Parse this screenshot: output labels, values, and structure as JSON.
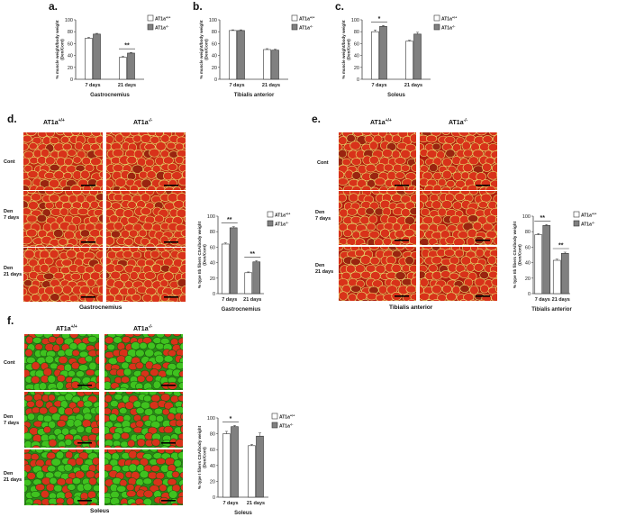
{
  "panels": {
    "a": {
      "letter": "a.",
      "tissue": "Gastrocnemius"
    },
    "b": {
      "letter": "b.",
      "tissue": "Tibialis anterior"
    },
    "c": {
      "letter": "c.",
      "tissue": "Soleus"
    },
    "d": {
      "letter": "d.",
      "tissue": "Gastrocnemius",
      "genotypes": [
        "AT1a",
        "AT1a"
      ],
      "genotype_sup": [
        "+/+",
        "-/-"
      ],
      "rows": [
        "Cont",
        "Den\n7 days",
        "Den\n21 days"
      ]
    },
    "e": {
      "letter": "e.",
      "tissue": "Tibialis anterior",
      "genotypes": [
        "AT1a",
        "AT1a"
      ],
      "genotype_sup": [
        "+/+",
        "-/-"
      ],
      "rows": [
        "Cont",
        "Den\n7 days",
        "Den\n21 days"
      ]
    },
    "f": {
      "letter": "f.",
      "tissue": "Soleus",
      "genotypes": [
        "AT1a",
        "AT1a"
      ],
      "genotype_sup": [
        "+/+",
        "-/-"
      ],
      "rows": [
        "Cont",
        "Den\n7 days",
        "Den\n21 days"
      ]
    }
  },
  "colors": {
    "wt": "#ffffff",
    "ko": "#808080",
    "red_fiber": "#d8321a",
    "green_fiber": "#3fc21f",
    "membrane": "#e8e070"
  },
  "chart_data": [
    {
      "id": "a",
      "type": "bar",
      "categories": [
        "7 days",
        "21 days"
      ],
      "series": [
        {
          "name": "AT1a+/+",
          "values": [
            69,
            37
          ],
          "errors": [
            1.5,
            1.5
          ]
        },
        {
          "name": "AT1a-/-",
          "values": [
            76,
            44
          ],
          "errors": [
            1.2,
            1.2
          ]
        }
      ],
      "xlabel": "Gastrocnemius",
      "ylabel": "% muscle weight/body weight\n(Den/Cont)",
      "ylim": [
        0,
        100
      ],
      "yticks": [
        0,
        20,
        40,
        60,
        80,
        100
      ],
      "annotations": [
        {
          "category": "21 days",
          "text": "**"
        }
      ],
      "legend": "top-right"
    },
    {
      "id": "b",
      "type": "bar",
      "categories": [
        "7 days",
        "21 days"
      ],
      "series": [
        {
          "name": "AT1a+/+",
          "values": [
            82,
            50
          ],
          "errors": [
            1.2,
            1.5
          ]
        },
        {
          "name": "AT1a-/-",
          "values": [
            82,
            49
          ],
          "errors": [
            1.2,
            1.5
          ]
        }
      ],
      "xlabel": "Tibialis anterior",
      "ylabel": "% muscle weight/body weight\n(Den/Cont)",
      "ylim": [
        0,
        100
      ],
      "yticks": [
        0,
        20,
        40,
        60,
        80,
        100
      ],
      "annotations": [],
      "legend": "top-right"
    },
    {
      "id": "c",
      "type": "bar",
      "categories": [
        "7 days",
        "21 days"
      ],
      "series": [
        {
          "name": "AT1a+/+",
          "values": [
            80,
            64
          ],
          "errors": [
            3,
            1.5
          ]
        },
        {
          "name": "AT1a-/-",
          "values": [
            89,
            76
          ],
          "errors": [
            1.5,
            3
          ]
        }
      ],
      "xlabel": "Soleus",
      "ylabel": "% muscle weight/body weight\n(Den/Cont)",
      "ylim": [
        0,
        100
      ],
      "yticks": [
        0,
        20,
        40,
        60,
        80,
        100
      ],
      "annotations": [
        {
          "category": "7 days",
          "text": "*"
        }
      ],
      "legend": "top-right"
    },
    {
      "id": "d",
      "type": "bar",
      "categories": [
        "7 days",
        "21 days"
      ],
      "series": [
        {
          "name": "AT1a+/+",
          "values": [
            64,
            27
          ],
          "errors": [
            1.5,
            1
          ]
        },
        {
          "name": "AT1a-/-",
          "values": [
            85,
            41
          ],
          "errors": [
            1.5,
            1.5
          ]
        }
      ],
      "xlabel": "Gastrocnemius",
      "ylabel": "% type IIb fibers CSA/body weight\n(Den/Cont)",
      "ylim": [
        0,
        100
      ],
      "yticks": [
        0,
        20,
        40,
        60,
        80,
        100
      ],
      "annotations": [
        {
          "category": "7 days",
          "text": "**"
        },
        {
          "category": "21 days",
          "text": "**"
        }
      ],
      "legend": "top-right"
    },
    {
      "id": "e",
      "type": "bar",
      "categories": [
        "7 days",
        "21 days"
      ],
      "series": [
        {
          "name": "AT1a+/+",
          "values": [
            76,
            43
          ],
          "errors": [
            1.5,
            1.5
          ]
        },
        {
          "name": "AT1a-/-",
          "values": [
            88,
            52
          ],
          "errors": [
            1.2,
            1.5
          ]
        }
      ],
      "xlabel": "Tibialis anterior",
      "ylabel": "% type IIb fibers CSA/body weight\n(Den/Cont)",
      "ylim": [
        0,
        100
      ],
      "yticks": [
        0,
        20,
        40,
        60,
        80,
        100
      ],
      "annotations": [
        {
          "category": "7 days",
          "text": "**"
        },
        {
          "category": "21 days",
          "text": "**"
        }
      ],
      "legend": "top-right"
    },
    {
      "id": "f",
      "type": "bar",
      "categories": [
        "7 days",
        "21 days"
      ],
      "series": [
        {
          "name": "AT1a+/+",
          "values": [
            80,
            65
          ],
          "errors": [
            3,
            1.5
          ]
        },
        {
          "name": "AT1a-/-",
          "values": [
            89,
            77
          ],
          "errors": [
            1.5,
            4
          ]
        }
      ],
      "xlabel": "Soleus",
      "ylabel": "% type I fibers CSA/body weight\n(Den/Cont)",
      "ylim": [
        0,
        100
      ],
      "yticks": [
        0,
        20,
        40,
        60,
        80,
        100
      ],
      "annotations": [
        {
          "category": "7 days",
          "text": "*"
        }
      ],
      "legend": "top-right"
    }
  ]
}
